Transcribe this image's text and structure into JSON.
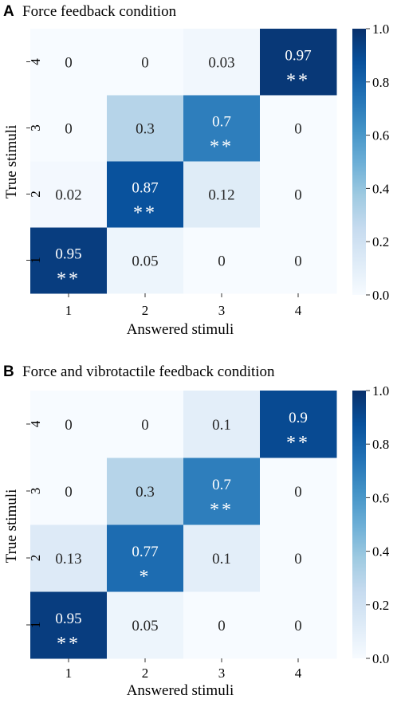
{
  "figure": {
    "panels": [
      {
        "letter": "A",
        "title": "Force feedback condition"
      },
      {
        "letter": "B",
        "title": "Force and vibrotactile feedback condition"
      }
    ]
  },
  "chart_data": [
    {
      "type": "heatmap",
      "title": "Force feedback condition",
      "xlabel": "Answered stimuli",
      "ylabel": "True stimuli",
      "x_categories": [
        "1",
        "2",
        "3",
        "4"
      ],
      "y_categories": [
        "1",
        "2",
        "3",
        "4"
      ],
      "values_by_true_stimulus": [
        [
          0.95,
          0.05,
          0,
          0
        ],
        [
          0.02,
          0.87,
          0.12,
          0
        ],
        [
          0,
          0.3,
          0.7,
          0
        ],
        [
          0,
          0,
          0.03,
          0.97
        ]
      ],
      "labels_by_true_stimulus": [
        [
          "0.95",
          "0.05",
          "0",
          "0"
        ],
        [
          "0.02",
          "0.87",
          "0.12",
          "0"
        ],
        [
          "0",
          "0.3",
          "0.7",
          "0"
        ],
        [
          "0",
          "0",
          "0.03",
          "0.97"
        ]
      ],
      "significance_by_true_stimulus": [
        [
          "**",
          "",
          "",
          ""
        ],
        [
          "",
          "**",
          "",
          ""
        ],
        [
          "",
          "",
          "**",
          ""
        ],
        [
          "",
          "",
          "",
          "**"
        ]
      ],
      "colorbar": {
        "range": [
          0,
          1
        ],
        "ticks": [
          "0.0",
          "0.2",
          "0.4",
          "0.6",
          "0.8",
          "1.0"
        ],
        "colormap": "Blues"
      }
    },
    {
      "type": "heatmap",
      "title": "Force and vibrotactile feedback condition",
      "xlabel": "Answered stimuli",
      "ylabel": "True stimuli",
      "x_categories": [
        "1",
        "2",
        "3",
        "4"
      ],
      "y_categories": [
        "1",
        "2",
        "3",
        "4"
      ],
      "values_by_true_stimulus": [
        [
          0.95,
          0.05,
          0,
          0
        ],
        [
          0.13,
          0.77,
          0.1,
          0
        ],
        [
          0,
          0.3,
          0.7,
          0
        ],
        [
          0,
          0,
          0.1,
          0.9
        ]
      ],
      "labels_by_true_stimulus": [
        [
          "0.95",
          "0.05",
          "0",
          "0"
        ],
        [
          "0.13",
          "0.77",
          "0.1",
          "0"
        ],
        [
          "0",
          "0.3",
          "0.7",
          "0"
        ],
        [
          "0",
          "0",
          "0.1",
          "0.9"
        ]
      ],
      "significance_by_true_stimulus": [
        [
          "**",
          "",
          "",
          ""
        ],
        [
          "",
          "*",
          "",
          ""
        ],
        [
          "",
          "",
          "**",
          ""
        ],
        [
          "",
          "",
          "",
          "**"
        ]
      ],
      "colorbar": {
        "range": [
          0,
          1
        ],
        "ticks": [
          "0.0",
          "0.2",
          "0.4",
          "0.6",
          "0.8",
          "1.0"
        ],
        "colormap": "Blues"
      }
    }
  ]
}
